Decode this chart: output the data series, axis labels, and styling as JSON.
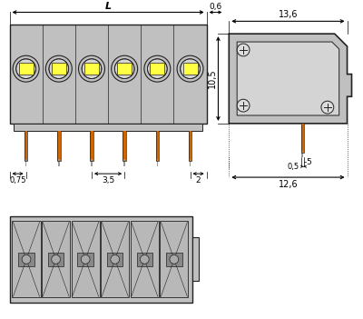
{
  "bg_color": "#ffffff",
  "gray_body": "#c0c0c0",
  "gray_light": "#d4d4d4",
  "gray_dark": "#a0a0a0",
  "dark_outline": "#222222",
  "yellow_color": "#ffff44",
  "orange_pin": "#cc6600",
  "dim_line_color": "#000000",
  "white_bg": "#ffffff",
  "num_poles": 6,
  "annotations": {
    "L": "L",
    "dim_06": "0,6",
    "dim_136": "13,6",
    "dim_105": "10,5",
    "dim_075": "0,75",
    "dim_35": "3,5",
    "dim_2": "2",
    "dim_05": "0,5",
    "dim_5": "5",
    "dim_126": "12,6"
  }
}
